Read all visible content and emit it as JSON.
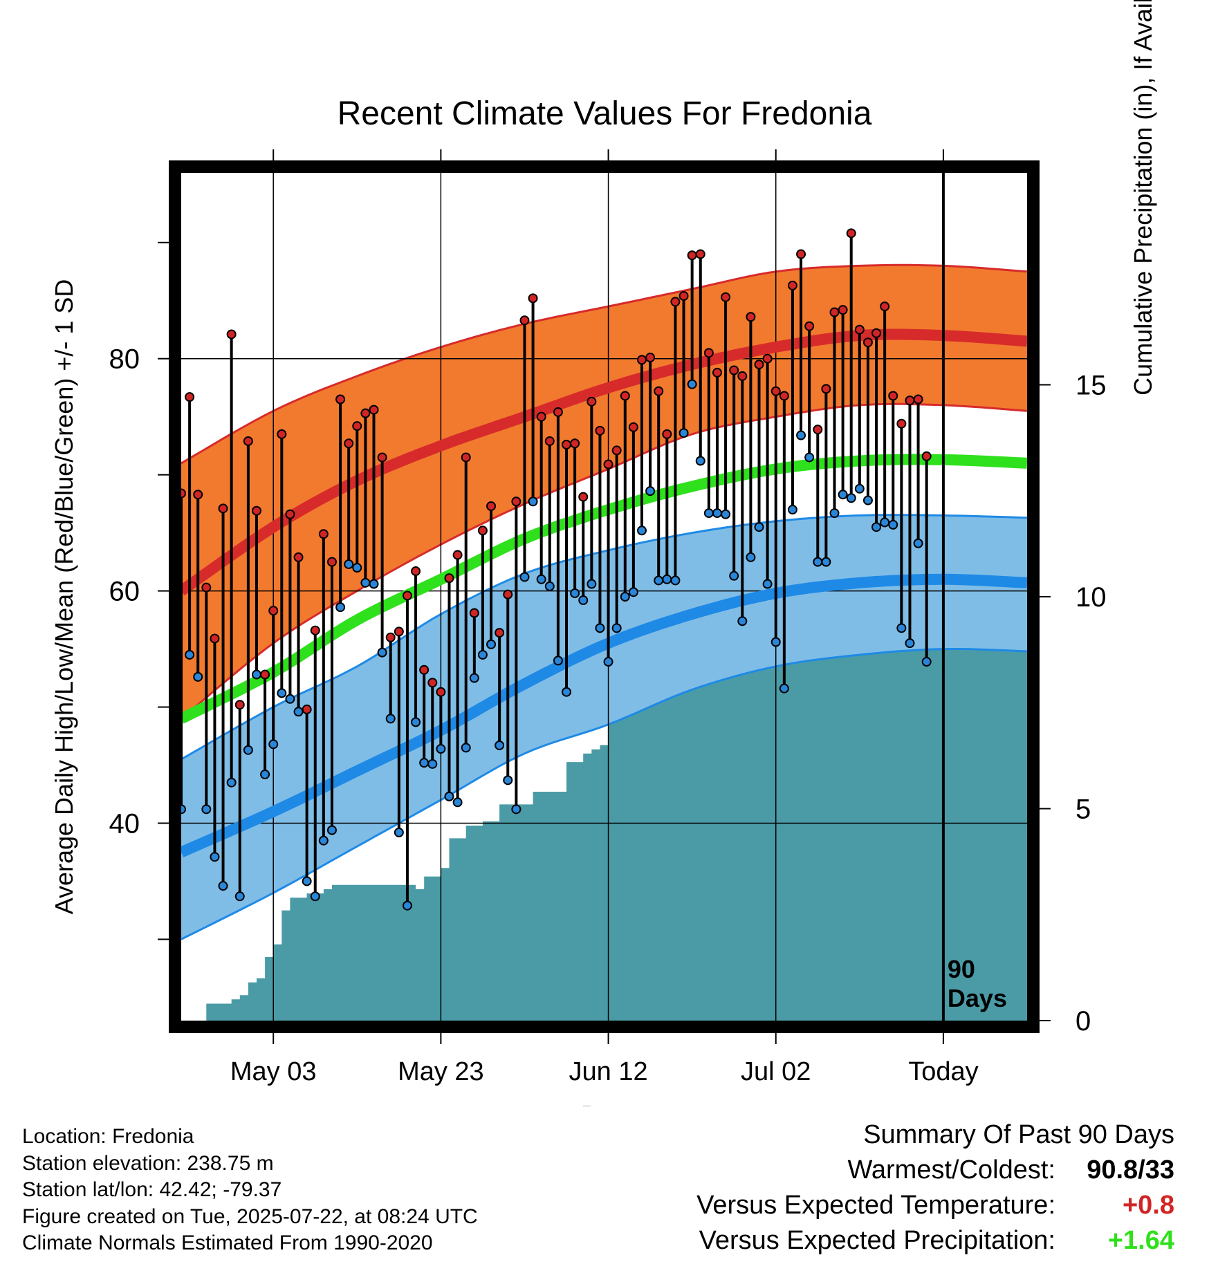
{
  "chart_data": {
    "type": "line",
    "title": "Recent Climate Values For Fredonia",
    "xlabel": "Day",
    "ylabel": "Average Daily High/Low/Mean (Red/Blue/Green) +/- 1 SD",
    "ylabel_right": "Cumulative Precipitation (in), If Available",
    "x_tick_labels": [
      "May 03",
      "May 23",
      "Jun 12",
      "Jul 02",
      "Today"
    ],
    "x_tick_days": [
      13,
      33,
      53,
      73,
      93
    ],
    "x_range_days": [
      2,
      103
    ],
    "ylim": [
      23,
      96
    ],
    "yticks_left": [
      40,
      60,
      80
    ],
    "ylim_right": [
      0,
      20
    ],
    "yticks_right": [
      0,
      5,
      10,
      15
    ],
    "today_marker_label": "90 Days",
    "today_day": 93,
    "normals": {
      "days": [
        2,
        13,
        23,
        33,
        43,
        53,
        63,
        73,
        83,
        93,
        103
      ],
      "high_mean": [
        60.0,
        65.5,
        69.5,
        72.5,
        75.0,
        77.5,
        79.5,
        81.0,
        82.0,
        82.0,
        81.5
      ],
      "high_upper": [
        71.0,
        75.5,
        78.5,
        81.0,
        83.0,
        84.5,
        86.0,
        87.5,
        88.0,
        88.0,
        87.5
      ],
      "high_lower": [
        49.0,
        55.5,
        60.0,
        64.0,
        67.5,
        70.5,
        73.5,
        75.0,
        76.0,
        76.0,
        75.5
      ],
      "mean_mean": [
        49.0,
        53.0,
        57.5,
        61.0,
        64.5,
        67.0,
        69.0,
        70.5,
        71.2,
        71.3,
        71.0
      ],
      "low_mean": [
        37.5,
        41.0,
        44.5,
        48.0,
        52.0,
        55.5,
        58.0,
        59.8,
        60.7,
        61.0,
        60.7
      ],
      "low_upper": [
        45.5,
        50.0,
        53.5,
        58.0,
        61.5,
        63.5,
        65.0,
        66.0,
        66.5,
        66.5,
        66.3
      ],
      "low_lower": [
        30.0,
        34.0,
        38.0,
        42.0,
        46.0,
        48.5,
        51.5,
        53.5,
        54.5,
        55.0,
        54.8
      ]
    },
    "observed": {
      "start_day": 2,
      "high": [
        68.4,
        76.7,
        68.3,
        60.3,
        55.9,
        67.1,
        82.1,
        50.2,
        72.9,
        66.9,
        52.8,
        58.3,
        73.5,
        66.6,
        62.9,
        49.8,
        56.6,
        64.9,
        62.5,
        76.5,
        72.7,
        74.2,
        75.3,
        75.6,
        71.5,
        56.0,
        56.5,
        59.6,
        61.7,
        53.2,
        52.1,
        51.3,
        61.1,
        63.1,
        71.5,
        58.1,
        65.2,
        67.3,
        56.4,
        59.7,
        67.7,
        83.3,
        85.2,
        75.0,
        72.9,
        75.4,
        72.6,
        72.7,
        68.1,
        76.3,
        73.8,
        70.9,
        72.1,
        76.8,
        74.1,
        79.9,
        80.1,
        77.2,
        73.5,
        84.9,
        85.4,
        88.9,
        89.0,
        80.5,
        78.8,
        85.3,
        79.0,
        78.5,
        83.6,
        79.5,
        80.0,
        77.2,
        76.8,
        86.3,
        89.0,
        82.8,
        73.9,
        77.4,
        84.0,
        84.2,
        90.8,
        82.5,
        81.4,
        82.2,
        84.5,
        76.8,
        74.4,
        76.4,
        76.5,
        71.6
      ],
      "low": [
        41.2,
        54.5,
        52.6,
        41.2,
        37.1,
        34.6,
        43.5,
        33.7,
        46.3,
        52.8,
        44.2,
        46.8,
        51.2,
        50.7,
        49.6,
        35.0,
        33.7,
        38.5,
        39.4,
        58.6,
        62.3,
        62.0,
        60.7,
        60.6,
        54.7,
        49.0,
        39.2,
        32.9,
        48.7,
        45.2,
        45.1,
        46.4,
        42.3,
        41.8,
        46.5,
        52.5,
        54.5,
        55.4,
        46.7,
        43.7,
        41.2,
        61.2,
        67.7,
        61.0,
        60.4,
        54.0,
        51.3,
        59.8,
        59.2,
        60.6,
        56.8,
        53.9,
        56.8,
        59.5,
        59.9,
        65.2,
        68.6,
        60.9,
        61.0,
        60.9,
        73.6,
        77.8,
        71.2,
        66.7,
        66.7,
        66.6,
        61.3,
        57.4,
        62.9,
        65.5,
        60.6,
        55.6,
        51.6,
        67.0,
        73.4,
        71.5,
        62.5,
        62.5,
        66.7,
        68.3,
        68.0,
        68.8,
        67.8,
        65.5,
        65.9,
        65.7,
        56.8,
        55.5,
        64.1,
        53.9
      ]
    },
    "precip": {
      "days": [
        2,
        4,
        5,
        8,
        9,
        10,
        11,
        12,
        13,
        14,
        15,
        16,
        17,
        18,
        19,
        20,
        30,
        31,
        32,
        33,
        34,
        36,
        38,
        40,
        42,
        44,
        48,
        49,
        50,
        51,
        52,
        53,
        56,
        59,
        60,
        61,
        62,
        63,
        65,
        66,
        67,
        68,
        70,
        71,
        72,
        73,
        75,
        76,
        77,
        78,
        79,
        80,
        81,
        83,
        84,
        85,
        86,
        87,
        88,
        89,
        90,
        91,
        92,
        93,
        103
      ],
      "values": [
        0.0,
        0.0,
        0.4,
        0.5,
        0.6,
        0.9,
        1.0,
        1.5,
        1.8,
        2.6,
        2.9,
        2.9,
        3.0,
        3.0,
        3.1,
        3.2,
        3.1,
        3.4,
        3.4,
        3.6,
        4.3,
        4.6,
        4.7,
        5.1,
        5.1,
        5.4,
        6.1,
        6.1,
        6.3,
        6.4,
        6.5,
        7.5,
        7.6,
        7.7,
        7.7,
        7.8,
        8.2,
        8.3,
        8.6,
        8.7,
        8.8,
        8.9,
        8.9,
        9.5,
        9.6,
        9.6,
        9.8,
        9.9,
        9.9,
        10.0,
        10.2,
        10.3,
        10.3,
        10.4,
        10.8,
        10.9,
        11.0,
        11.0,
        11.1,
        11.2,
        11.3,
        11.4,
        11.4,
        11.6,
        11.6
      ]
    },
    "grid": true,
    "colors": {
      "high_band": "#f27a2e",
      "high_line": "#d72b2b",
      "mean_line": "#2fe01c",
      "low_band": "#80bde6",
      "low_line": "#1e8ae6",
      "precip": "#4a9ba6",
      "high_dot": "#d12525",
      "low_dot": "#2a86d8"
    }
  },
  "info": {
    "location": "Location: Fredonia",
    "elevation": "Station elevation: 238.75 m",
    "latlon": "Station lat/lon: 42.42; -79.37",
    "created": "Figure created on Tue, 2025-07-22, at 08:24 UTC",
    "normals": "Climate Normals Estimated From 1990-2020"
  },
  "summary": {
    "title": "Summary Of Past 90 Days",
    "warmest_label": "Warmest/Coldest:",
    "warmest_value": "90.8/33",
    "temp_label": "Versus Expected Temperature:",
    "temp_value": "+0.8",
    "temp_color": "#d12525",
    "precip_label": "Versus Expected Precipitation:",
    "precip_value": "+1.64",
    "precip_color": "#2fe01c"
  }
}
